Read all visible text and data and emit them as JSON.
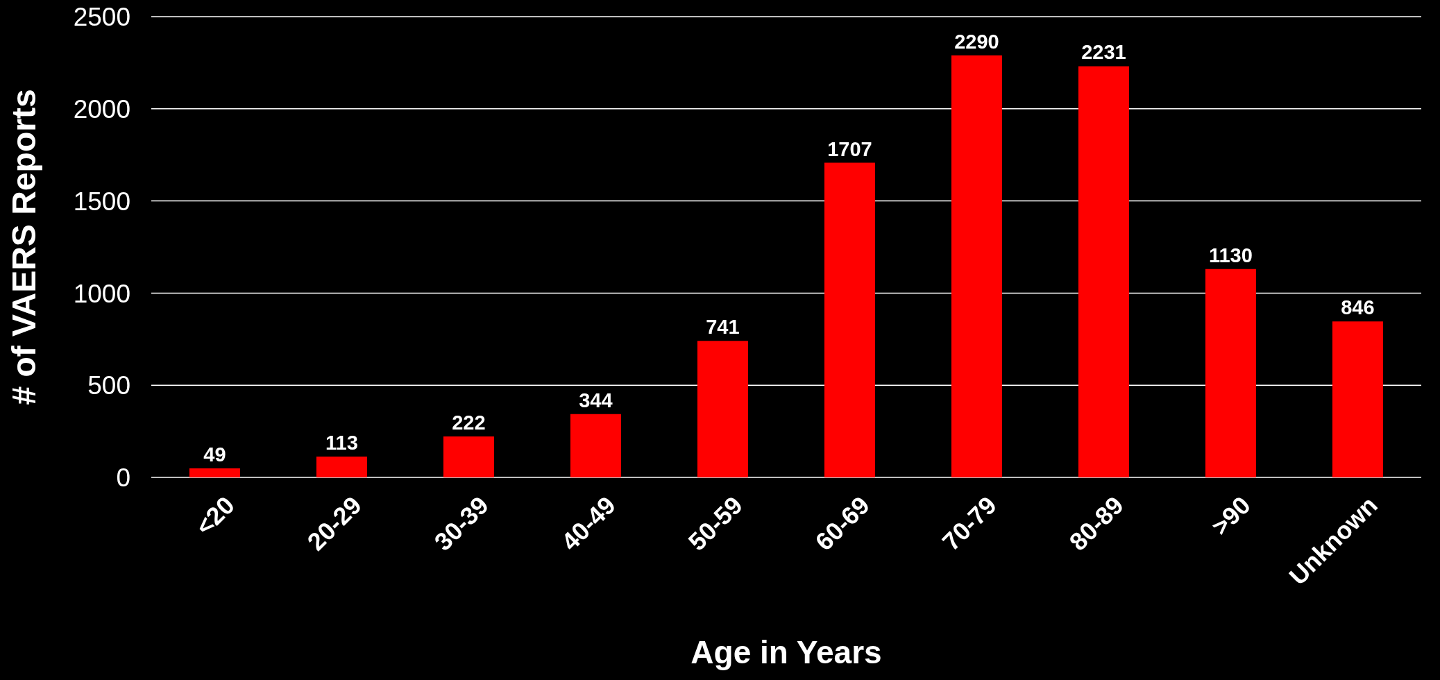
{
  "chart_data": {
    "type": "bar",
    "xlabel": "Age in Years",
    "ylabel": "# of VAERS Reports",
    "categories": [
      "<20",
      "20-29",
      "30-39",
      "40-49",
      "50-59",
      "60-69",
      "70-79",
      "80-89",
      ">90",
      "Unknown"
    ],
    "values": [
      49,
      113,
      222,
      344,
      741,
      1707,
      2290,
      2231,
      1130,
      846
    ],
    "color": "#ff0000",
    "ylim": [
      0,
      2500
    ],
    "yticks": [
      0,
      500,
      1000,
      1500,
      2000,
      2500
    ],
    "grid": "y",
    "legend": false,
    "data_labels": true
  }
}
